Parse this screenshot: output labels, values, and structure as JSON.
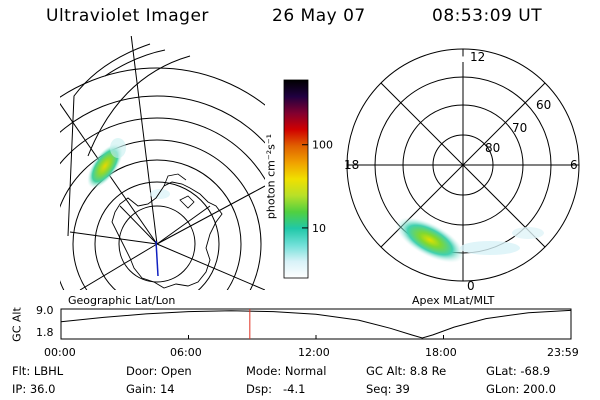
{
  "header": {
    "instrument": "Ultraviolet Imager",
    "date": "26 May 07",
    "time": "08:53:09 UT"
  },
  "geo_panel": {
    "label": "Geographic Lat/Lon"
  },
  "colorbar": {
    "unit_label": "photon cm⁻²s⁻¹",
    "ticks": [
      {
        "value": 100,
        "label": "100"
      },
      {
        "value": 10,
        "label": "10"
      }
    ],
    "range": [
      2.5,
      600
    ],
    "scale": "log",
    "colors": [
      "#ffffff",
      "#d8f2f8",
      "#70e0d8",
      "#20c8a8",
      "#50d040",
      "#b8e028",
      "#f0e000",
      "#f0a000",
      "#e06000",
      "#d00000",
      "#800030",
      "#200040",
      "#000000"
    ]
  },
  "apex_panel": {
    "label": "Apex MLat/MLT",
    "mlt_labels": [
      "12",
      "6",
      "0",
      "18"
    ],
    "mlat_labels": [
      "60",
      "70",
      "80"
    ]
  },
  "altitude_plot": {
    "ylabel": "GC Alt",
    "yticks": [
      "9.0",
      "1.8"
    ],
    "xticks": [
      "00:00",
      "06:00",
      "12:00",
      "18:00",
      "23:59"
    ],
    "current_time_hours": 8.886,
    "series": [
      {
        "t": 0,
        "alt": 6.0
      },
      {
        "t": 2,
        "alt": 7.1
      },
      {
        "t": 4,
        "alt": 8.0
      },
      {
        "t": 6,
        "alt": 8.6
      },
      {
        "t": 8,
        "alt": 8.8
      },
      {
        "t": 10,
        "alt": 8.6
      },
      {
        "t": 12,
        "alt": 7.9
      },
      {
        "t": 14,
        "alt": 6.4
      },
      {
        "t": 15.5,
        "alt": 4.3
      },
      {
        "t": 16.5,
        "alt": 2.6
      },
      {
        "t": 17,
        "alt": 1.8
      },
      {
        "t": 17.5,
        "alt": 2.6
      },
      {
        "t": 18.5,
        "alt": 4.6
      },
      {
        "t": 20,
        "alt": 6.8
      },
      {
        "t": 22,
        "alt": 8.3
      },
      {
        "t": 23.98,
        "alt": 8.9
      }
    ]
  },
  "status": {
    "flt": "Flt: LBHL",
    "door": "Door: Open",
    "mode": "Mode: Normal",
    "gc_alt": "GC Alt: 8.8 Re",
    "glat": "GLat: -68.9",
    "ip": "IP: 36.0",
    "gain": "Gain: 14",
    "dsp": "Dsp:   -4.1",
    "seq": "Seq: 39",
    "glon": "GLon: 200.0"
  }
}
